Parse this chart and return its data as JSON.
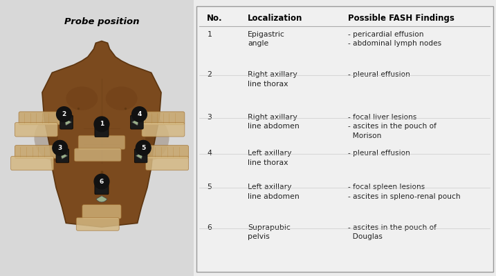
{
  "title": "Probe position",
  "header_no": "No.",
  "header_loc": "Localization",
  "header_findings": "Possible FASH Findings",
  "rows": [
    {
      "no": "1",
      "localization": "Epigastric\nangle",
      "findings": "- pericardial effusion\n- abdominal lymph nodes"
    },
    {
      "no": "2",
      "localization": "Right axillary\nline thorax",
      "findings": "- pleural effusion"
    },
    {
      "no": "3",
      "localization": "Right axillary\nline abdomen",
      "findings": "- focal liver lesions\n- ascites in the pouch of\n  Morison"
    },
    {
      "no": "4",
      "localization": "Left axillary\nline thorax",
      "findings": "- pleural effusion"
    },
    {
      "no": "5",
      "localization": "Left axillary\nline abdomen",
      "findings": "- focal spleen lesions\n- ascites in spleno-renal pouch"
    },
    {
      "no": "6",
      "localization": "Suprapubic\npelvis",
      "findings": "- ascites in the pouch of\n  Douglas"
    }
  ],
  "bg_color": "#d8d8d8",
  "table_bg": "#ececec",
  "body_brown": "#7B4A1E",
  "body_dark": "#5C3510",
  "probe_green": "#9aaf8a",
  "hand_skin": "#c8a870",
  "hand_skin2": "#d4b882",
  "header_fontsize": 8.5,
  "body_fontsize": 7.8,
  "fig_width": 7.17,
  "fig_height": 4.0
}
